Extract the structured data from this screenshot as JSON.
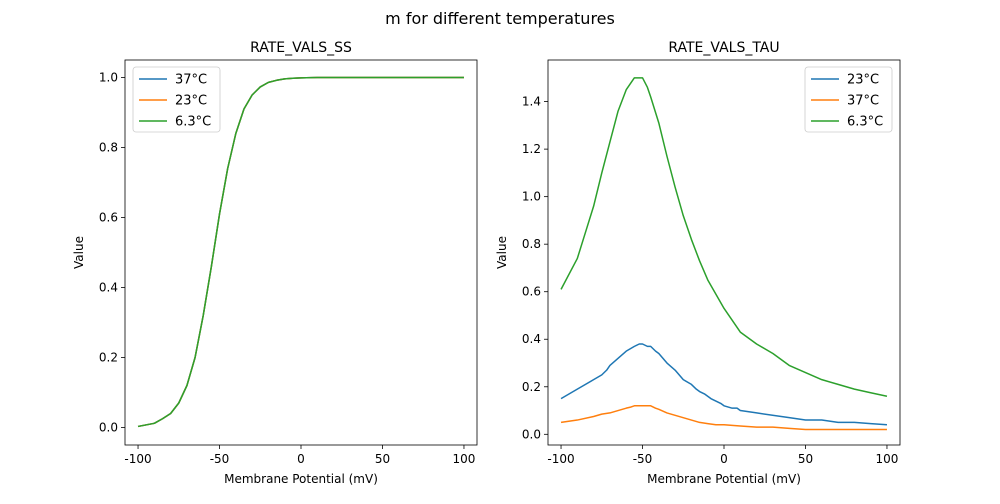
{
  "figure": {
    "title": "m for different temperatures"
  },
  "colors": {
    "blue": "#1f77b4",
    "orange": "#ff7f0e",
    "green": "#2ca02c"
  },
  "chart_data": [
    {
      "type": "line",
      "title": "RATE_VALS_SS",
      "xlabel": "Membrane Potential (mV)",
      "ylabel": "Value",
      "xlim": [
        -108,
        108
      ],
      "ylim": [
        -0.05,
        1.05
      ],
      "xticks": [
        -100,
        -50,
        0,
        50,
        100
      ],
      "yticks": [
        0.0,
        0.2,
        0.4,
        0.6,
        0.8,
        1.0
      ],
      "ytick_labels": [
        "0.0",
        "0.2",
        "0.4",
        "0.6",
        "0.8",
        "1.0"
      ],
      "grid": false,
      "legend": "top-left",
      "series": [
        {
          "name": "37°C",
          "color": "#1f77b4",
          "x": [
            -100,
            -90,
            -85,
            -80,
            -75,
            -70,
            -65,
            -60,
            -55,
            -50,
            -45,
            -40,
            -35,
            -30,
            -25,
            -20,
            -15,
            -10,
            -5,
            0,
            10,
            20,
            40,
            60,
            80,
            100
          ],
          "y": [
            0.003,
            0.012,
            0.025,
            0.04,
            0.07,
            0.12,
            0.2,
            0.32,
            0.46,
            0.61,
            0.74,
            0.84,
            0.91,
            0.95,
            0.973,
            0.986,
            0.992,
            0.996,
            0.998,
            0.999,
            1.0,
            1.0,
            1.0,
            1.0,
            1.0,
            1.0
          ]
        },
        {
          "name": "23°C",
          "color": "#ff7f0e",
          "x": [
            -100,
            -90,
            -85,
            -80,
            -75,
            -70,
            -65,
            -60,
            -55,
            -50,
            -45,
            -40,
            -35,
            -30,
            -25,
            -20,
            -15,
            -10,
            -5,
            0,
            10,
            20,
            40,
            60,
            80,
            100
          ],
          "y": [
            0.003,
            0.012,
            0.025,
            0.04,
            0.07,
            0.12,
            0.2,
            0.32,
            0.46,
            0.61,
            0.74,
            0.84,
            0.91,
            0.95,
            0.973,
            0.986,
            0.992,
            0.996,
            0.998,
            0.999,
            1.0,
            1.0,
            1.0,
            1.0,
            1.0,
            1.0
          ]
        },
        {
          "name": "6.3°C",
          "color": "#2ca02c",
          "x": [
            -100,
            -90,
            -85,
            -80,
            -75,
            -70,
            -65,
            -60,
            -55,
            -50,
            -45,
            -40,
            -35,
            -30,
            -25,
            -20,
            -15,
            -10,
            -5,
            0,
            10,
            20,
            40,
            60,
            80,
            100
          ],
          "y": [
            0.003,
            0.012,
            0.025,
            0.04,
            0.07,
            0.12,
            0.2,
            0.32,
            0.46,
            0.61,
            0.74,
            0.84,
            0.91,
            0.95,
            0.973,
            0.986,
            0.992,
            0.996,
            0.998,
            0.999,
            1.0,
            1.0,
            1.0,
            1.0,
            1.0,
            1.0
          ]
        }
      ]
    },
    {
      "type": "line",
      "title": "RATE_VALS_TAU",
      "xlabel": "Membrane Potential (mV)",
      "ylabel": "Value",
      "xlim": [
        -108,
        108
      ],
      "ylim": [
        -0.045,
        1.575
      ],
      "xticks": [
        -100,
        -50,
        0,
        50,
        100
      ],
      "yticks": [
        0.0,
        0.2,
        0.4,
        0.6,
        0.8,
        1.0,
        1.2,
        1.4
      ],
      "ytick_labels": [
        "0.0",
        "0.2",
        "0.4",
        "0.6",
        "0.8",
        "1.0",
        "1.2",
        "1.4"
      ],
      "grid": false,
      "legend": "top-right",
      "series": [
        {
          "name": "23°C",
          "color": "#1f77b4",
          "x": [
            -100,
            -90,
            -80,
            -75,
            -72,
            -70,
            -65,
            -60,
            -55,
            -52,
            -50,
            -47,
            -45,
            -42,
            -40,
            -35,
            -30,
            -25,
            -20,
            -17,
            -15,
            -12,
            -10,
            -8,
            -5,
            -2,
            0,
            5,
            8,
            10,
            20,
            40,
            50,
            60,
            70,
            80,
            90,
            100
          ],
          "y": [
            0.15,
            0.19,
            0.23,
            0.25,
            0.27,
            0.29,
            0.32,
            0.35,
            0.37,
            0.38,
            0.38,
            0.37,
            0.37,
            0.35,
            0.34,
            0.3,
            0.27,
            0.23,
            0.21,
            0.19,
            0.18,
            0.17,
            0.16,
            0.15,
            0.14,
            0.13,
            0.12,
            0.11,
            0.11,
            0.1,
            0.09,
            0.07,
            0.06,
            0.06,
            0.05,
            0.05,
            0.045,
            0.04
          ]
        },
        {
          "name": "37°C",
          "color": "#ff7f0e",
          "x": [
            -100,
            -90,
            -80,
            -75,
            -70,
            -65,
            -60,
            -57,
            -55,
            -50,
            -45,
            -42,
            -40,
            -35,
            -30,
            -25,
            -20,
            -15,
            -10,
            -5,
            0,
            10,
            20,
            30,
            40,
            50,
            60,
            80,
            100
          ],
          "y": [
            0.05,
            0.06,
            0.075,
            0.085,
            0.09,
            0.1,
            0.11,
            0.115,
            0.12,
            0.12,
            0.12,
            0.11,
            0.105,
            0.09,
            0.08,
            0.07,
            0.06,
            0.05,
            0.045,
            0.04,
            0.04,
            0.035,
            0.03,
            0.03,
            0.025,
            0.02,
            0.02,
            0.02,
            0.02
          ]
        },
        {
          "name": "6.3°C",
          "color": "#2ca02c",
          "x": [
            -100,
            -90,
            -85,
            -80,
            -75,
            -70,
            -65,
            -60,
            -57,
            -55,
            -52,
            -50,
            -47,
            -45,
            -40,
            -35,
            -30,
            -25,
            -20,
            -15,
            -10,
            -5,
            0,
            5,
            10,
            20,
            30,
            40,
            50,
            60,
            70,
            80,
            90,
            100
          ],
          "y": [
            0.61,
            0.74,
            0.85,
            0.96,
            1.1,
            1.23,
            1.36,
            1.45,
            1.48,
            1.5,
            1.5,
            1.5,
            1.46,
            1.42,
            1.31,
            1.17,
            1.04,
            0.92,
            0.82,
            0.73,
            0.65,
            0.59,
            0.53,
            0.48,
            0.43,
            0.38,
            0.34,
            0.29,
            0.26,
            0.23,
            0.21,
            0.19,
            0.175,
            0.16
          ]
        }
      ]
    }
  ]
}
